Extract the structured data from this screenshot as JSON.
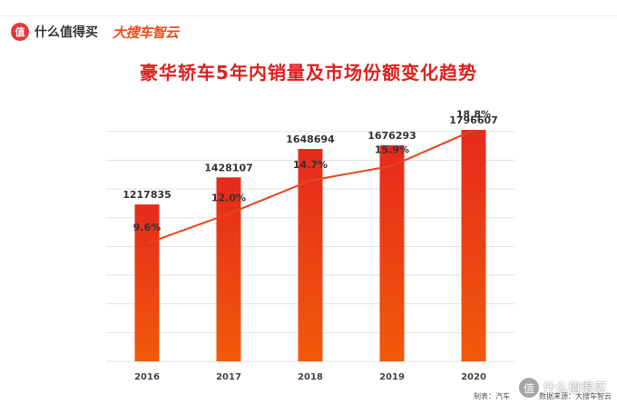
{
  "header": {
    "brand_badge": "值",
    "brand_name": "什么值得买",
    "partner_name": "大搜车智云"
  },
  "colors": {
    "title": "#e02020",
    "bar_top": "#e52a1c",
    "bar_bottom": "#f25a0a",
    "line": "#e8451e",
    "grid": "#e3e3e3"
  },
  "footer": {
    "maker": "制表：汽车",
    "source": "数据来源：大搜车智云"
  },
  "watermark": {
    "badge": "值",
    "text": "什么值得买"
  },
  "chart_data": {
    "type": "bar",
    "title": "豪华轿车5年内销量及市场份额变化趋势",
    "categories": [
      "2016",
      "2017",
      "2018",
      "2019",
      "2020"
    ],
    "series": [
      {
        "values": [
          1217835,
          1428107,
          1648694,
          1676293,
          1796607
        ]
      }
    ],
    "line_series": [
      {
        "values": [
          9.6,
          12.0,
          14.7,
          15.9,
          18.8
        ],
        "labels": [
          "9.6%",
          "12.0%",
          "14.7%",
          "15.9%",
          "18.8%"
        ]
      }
    ],
    "bar_labels": [
      "1217835",
      "1428107",
      "1648694",
      "1676293",
      "1796607"
    ],
    "ylim": [
      0,
      2100000
    ],
    "line_ylim": [
      0,
      22
    ],
    "grid": true
  }
}
